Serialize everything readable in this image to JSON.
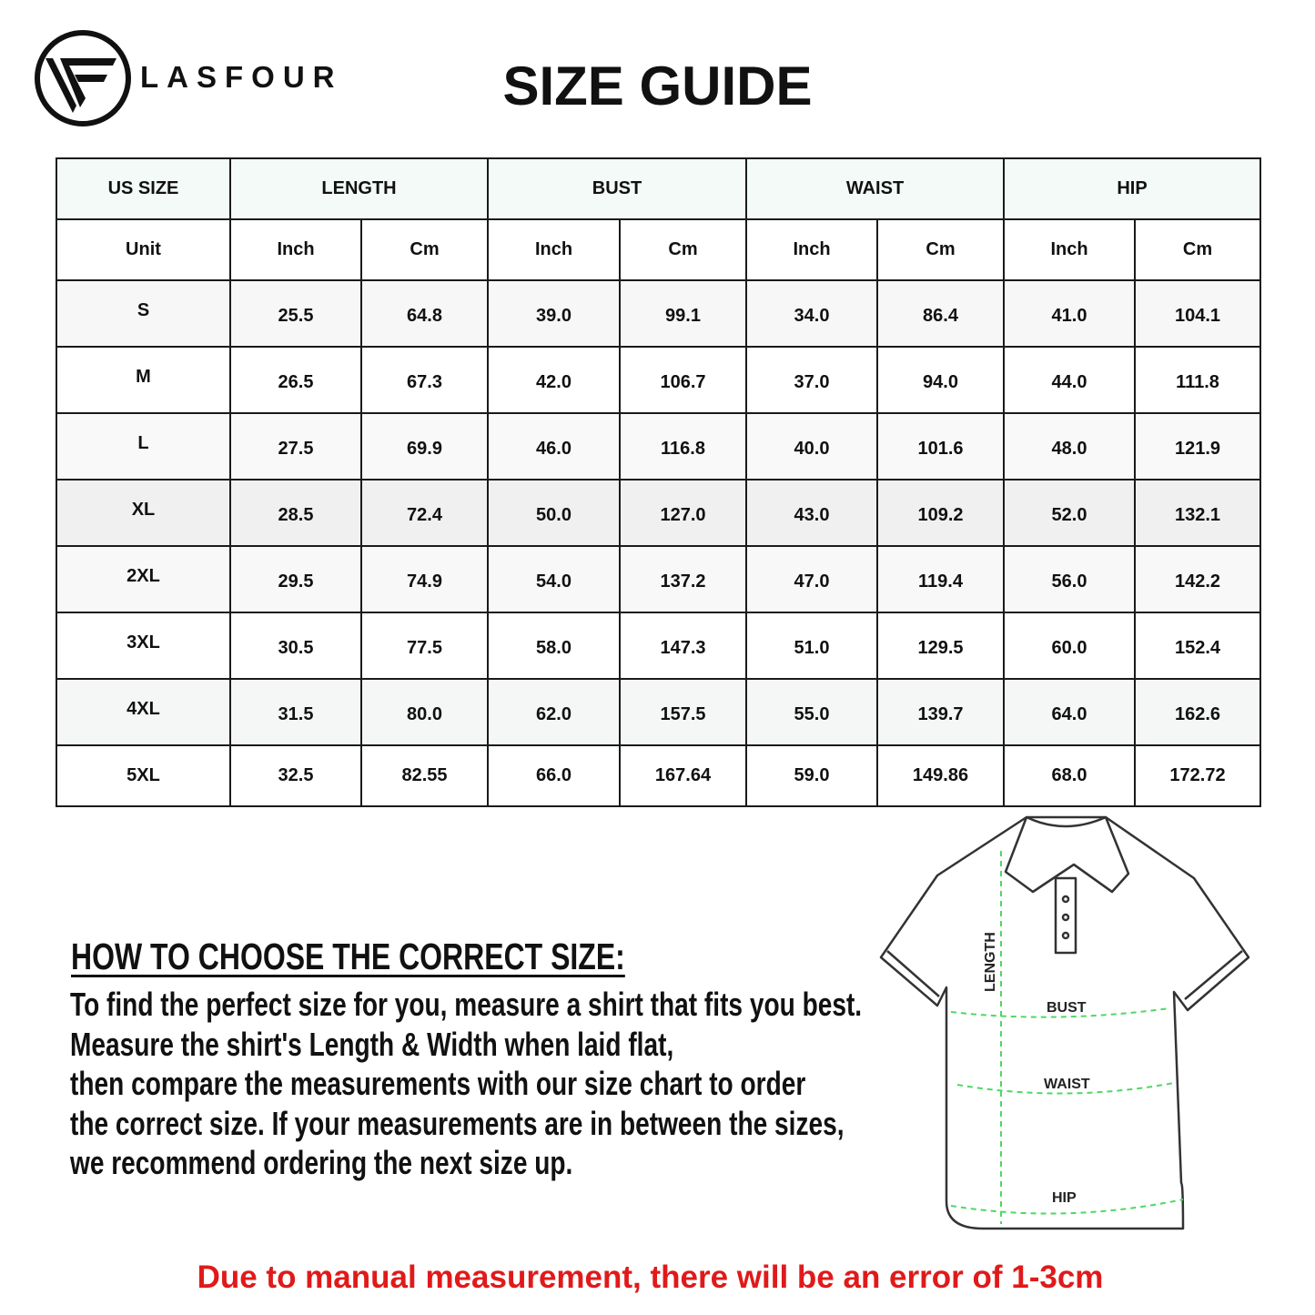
{
  "brand": {
    "name": "LASFOUR",
    "logo_icon": "lf-circle-logo"
  },
  "title": "SIZE GUIDE",
  "table": {
    "group_headers": [
      "US SIZE",
      "LENGTH",
      "BUST",
      "WAIST",
      "HIP"
    ],
    "unit_row": [
      "Unit",
      "Inch",
      "Cm",
      "Inch",
      "Cm",
      "Inch",
      "Cm",
      "Inch",
      "Cm"
    ],
    "rows": [
      [
        "S",
        "25.5",
        "64.8",
        "39.0",
        "99.1",
        "34.0",
        "86.4",
        "41.0",
        "104.1"
      ],
      [
        "M",
        "26.5",
        "67.3",
        "42.0",
        "106.7",
        "37.0",
        "94.0",
        "44.0",
        "111.8"
      ],
      [
        "L",
        "27.5",
        "69.9",
        "46.0",
        "116.8",
        "40.0",
        "101.6",
        "48.0",
        "121.9"
      ],
      [
        "XL",
        "28.5",
        "72.4",
        "50.0",
        "127.0",
        "43.0",
        "109.2",
        "52.0",
        "132.1"
      ],
      [
        "2XL",
        "29.5",
        "74.9",
        "54.0",
        "137.2",
        "47.0",
        "119.4",
        "56.0",
        "142.2"
      ],
      [
        "3XL",
        "30.5",
        "77.5",
        "58.0",
        "147.3",
        "51.0",
        "129.5",
        "60.0",
        "152.4"
      ],
      [
        "4XL",
        "31.5",
        "80.0",
        "62.0",
        "157.5",
        "55.0",
        "139.7",
        "64.0",
        "162.6"
      ],
      [
        "5XL",
        "32.5",
        "82.55",
        "66.0",
        "167.64",
        "59.0",
        "149.86",
        "68.0",
        "172.72"
      ]
    ]
  },
  "howto": {
    "heading": "HOW TO CHOOSE THE CORRECT SIZE:",
    "lines": [
      "To find the perfect size for you, measure a shirt that fits you best.",
      "Measure the shirt's Length & Width when laid flat,",
      "then compare the measurements with our size chart to order",
      "the correct size. If your measurements are in between the sizes,",
      "we recommend ordering the next size up."
    ]
  },
  "diagram": {
    "labels": {
      "length": "LENGTH",
      "bust": "BUST",
      "waist": "WAIST",
      "hip": "HIP"
    },
    "measure_color": "#4cd964"
  },
  "note": {
    "text": "Due to manual measurement, there will be an error of 1-3cm",
    "color": "#e01a1a"
  }
}
